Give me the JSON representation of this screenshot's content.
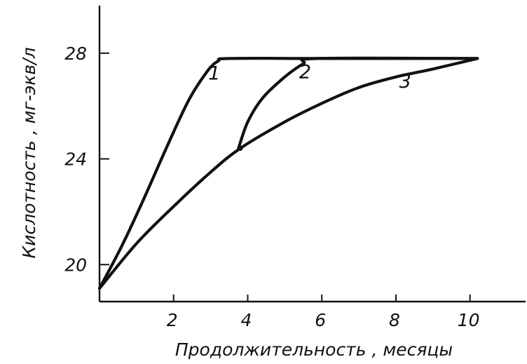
{
  "chart_data": {
    "type": "line",
    "title": "",
    "xlabel": "Продолжительность , месяцы",
    "ylabel": "Кислотность , мг-экв/л",
    "xlim": [
      0,
      11.5
    ],
    "ylim": [
      18.6,
      29.8
    ],
    "x_ticks": [
      2,
      4,
      6,
      8,
      10
    ],
    "y_ticks": [
      20,
      24,
      28
    ],
    "grid": false,
    "legend": "none",
    "series": [
      {
        "name": "1",
        "x": [
          0,
          0.6,
          1.2,
          1.8,
          2.4,
          2.9,
          3.2,
          3.5,
          6,
          10.2
        ],
        "y": [
          19.1,
          20.7,
          22.5,
          24.4,
          26.2,
          27.3,
          27.7,
          27.8,
          27.8,
          27.8
        ]
      },
      {
        "name": "2",
        "x": [
          3.75,
          4.0,
          4.4,
          5.0,
          5.5,
          5.9,
          10.2
        ],
        "y": [
          24.4,
          25.4,
          26.3,
          27.1,
          27.6,
          27.8,
          27.8
        ]
      },
      {
        "name": "3",
        "x": [
          0,
          1.0,
          2.0,
          3.0,
          3.8,
          5.0,
          6.0,
          7.0,
          8.0,
          9.0,
          10.2
        ],
        "y": [
          19.1,
          20.8,
          22.2,
          23.5,
          24.4,
          25.4,
          26.1,
          26.7,
          27.1,
          27.4,
          27.8
        ]
      }
    ],
    "junction": {
      "x": 3.8,
      "y": 24.4
    },
    "series_labels": [
      {
        "text": "1",
        "x": 3.1,
        "y": 27.0
      },
      {
        "text": "2",
        "x": 5.55,
        "y": 27.05
      },
      {
        "text": "3",
        "x": 8.25,
        "y": 26.7
      }
    ]
  }
}
